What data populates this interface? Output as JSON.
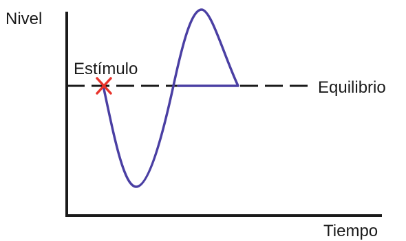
{
  "diagram": {
    "y_axis_label": "Nivel",
    "x_axis_label": "Tiempo",
    "stimulus_label": "Estímulo",
    "equilibrium_label": "Equilibrio",
    "colors": {
      "axis": "#1a1a1a",
      "equilibrium_line": "#1a1a1a",
      "response_curve": "#4a3fa3",
      "stimulus_marker": "#e8332b"
    },
    "icons": {
      "stimulus_marker": "x-cross-icon"
    }
  }
}
